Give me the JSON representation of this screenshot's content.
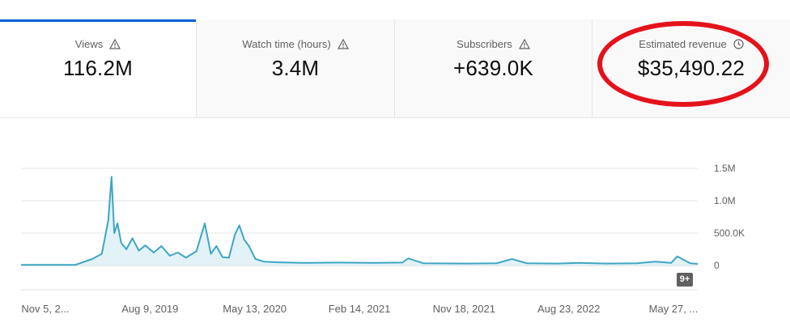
{
  "tabs": [
    {
      "label": "Views",
      "value": "116.2M",
      "icon": "warning-icon"
    },
    {
      "label": "Watch time (hours)",
      "value": "3.4M",
      "icon": "warning-icon"
    },
    {
      "label": "Subscribers",
      "value": "+639.0K",
      "icon": "warning-icon"
    },
    {
      "label": "Estimated revenue",
      "value": "$35,490.22",
      "icon": "clock-icon"
    }
  ],
  "colors": {
    "line": "#3ea6c4",
    "fill": "#e3f2f7",
    "accent": "#065fd4",
    "highlight": "#e5121b"
  },
  "more_badge": "9+",
  "chart_data": {
    "type": "area",
    "title": "",
    "xlabel": "",
    "ylabel": "",
    "ylim": [
      0,
      1500000
    ],
    "y_ticks": [
      {
        "value": 0,
        "label": "0"
      },
      {
        "value": 500000,
        "label": "500.0K"
      },
      {
        "value": 1000000,
        "label": "1.0M"
      },
      {
        "value": 1500000,
        "label": "1.5M"
      }
    ],
    "x_tick_labels": [
      "Nov 5, 2...",
      "Aug 9, 2019",
      "May 13, 2020",
      "Feb 14, 2021",
      "Nov 18, 2021",
      "Aug 23, 2022",
      "May 27, ..."
    ],
    "grid": true,
    "series": [
      {
        "x": [
          "2018-11-05",
          "2019-03-20",
          "2019-05-01",
          "2019-05-25",
          "2019-06-10",
          "2019-06-18",
          "2019-06-25",
          "2019-07-03",
          "2019-07-12",
          "2019-07-25",
          "2019-08-09",
          "2019-08-25",
          "2019-09-10",
          "2019-10-01",
          "2019-10-20",
          "2019-11-10",
          "2019-11-30",
          "2019-12-20",
          "2020-01-15",
          "2020-02-05",
          "2020-02-20",
          "2020-03-05",
          "2020-03-20",
          "2020-04-05",
          "2020-04-20",
          "2020-05-01",
          "2020-05-13",
          "2020-05-25",
          "2020-06-10",
          "2020-07-01",
          "2020-08-01",
          "2020-10-01",
          "2021-01-01",
          "2021-04-01",
          "2021-06-10",
          "2021-06-25",
          "2021-08-01",
          "2021-11-18",
          "2022-02-01",
          "2022-03-10",
          "2022-04-15",
          "2022-07-01",
          "2022-08-23",
          "2022-11-01",
          "2023-01-15",
          "2023-03-01",
          "2023-04-10",
          "2023-04-25",
          "2023-05-27",
          "2023-06-15"
        ],
        "values": [
          10000,
          10000,
          100000,
          180000,
          700000,
          1370000,
          500000,
          650000,
          350000,
          250000,
          420000,
          230000,
          310000,
          200000,
          300000,
          150000,
          200000,
          120000,
          220000,
          650000,
          180000,
          300000,
          130000,
          120000,
          480000,
          620000,
          400000,
          300000,
          100000,
          60000,
          50000,
          40000,
          45000,
          40000,
          45000,
          110000,
          35000,
          30000,
          35000,
          100000,
          35000,
          30000,
          40000,
          30000,
          35000,
          60000,
          40000,
          140000,
          35000,
          25000
        ]
      }
    ]
  }
}
